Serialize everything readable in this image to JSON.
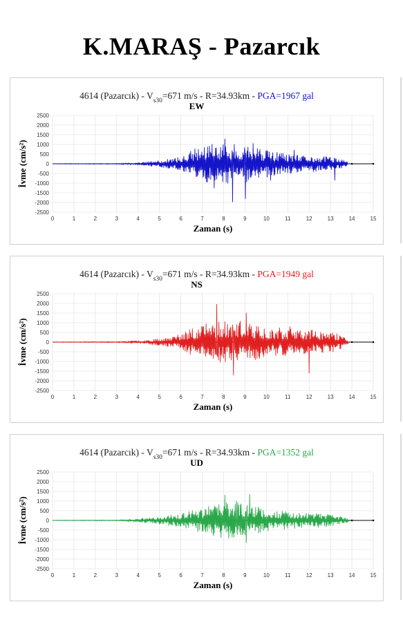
{
  "page_title": "K.MARAŞ - Pazarcık",
  "chart_data": [
    {
      "type": "line",
      "title_prefix": "4614 (Pazarcık) - V",
      "title_sub": "s30",
      "title_suffix": "=671 m/s - R=34.93km - ",
      "pga_label": "PGA=1967 gal",
      "component": "EW",
      "color": "#1414c8",
      "xlabel": "Zaman (s)",
      "ylabel": "İvme (cm/s²)",
      "xlim": [
        0,
        15
      ],
      "ylim": [
        -2500,
        2500
      ],
      "x_ticks": [
        0,
        1,
        2,
        3,
        4,
        5,
        6,
        7,
        8,
        9,
        10,
        11,
        12,
        13,
        14,
        15
      ],
      "y_ticks": [
        2500,
        2000,
        1500,
        1000,
        500,
        0,
        -500,
        -1000,
        -1500,
        -2000,
        -2500
      ],
      "grid": true,
      "envelope": [
        [
          0,
          15
        ],
        [
          3,
          25
        ],
        [
          4,
          70
        ],
        [
          5,
          160
        ],
        [
          6,
          350
        ],
        [
          6.5,
          700
        ],
        [
          7,
          950
        ],
        [
          7.5,
          1050
        ],
        [
          8,
          1050
        ],
        [
          8.5,
          1000
        ],
        [
          9,
          1000
        ],
        [
          9.5,
          850
        ],
        [
          10,
          700
        ],
        [
          11,
          500
        ],
        [
          12,
          400
        ],
        [
          13,
          380
        ],
        [
          13.6,
          200
        ],
        [
          14,
          20
        ],
        [
          15,
          20
        ]
      ],
      "peaks": [
        [
          8.42,
          -1967
        ],
        [
          8.05,
          1280
        ],
        [
          9.02,
          -1800
        ],
        [
          9.38,
          1050
        ],
        [
          7.55,
          -1250
        ],
        [
          10.2,
          -850
        ],
        [
          13.2,
          -850
        ],
        [
          11.3,
          700
        ]
      ],
      "seed": 11
    },
    {
      "type": "line",
      "title_prefix": "4614 (Pazarcık) - V",
      "title_sub": "s30",
      "title_suffix": "=671 m/s - R=34.93km - ",
      "pga_label": "PGA=1949 gal",
      "component": "NS",
      "color": "#e02020",
      "xlabel": "Zaman (s)",
      "ylabel": "İvme (cm/s²)",
      "xlim": [
        0,
        15
      ],
      "ylim": [
        -2500,
        2500
      ],
      "x_ticks": [
        0,
        1,
        2,
        3,
        4,
        5,
        6,
        7,
        8,
        9,
        10,
        11,
        12,
        13,
        14,
        15
      ],
      "y_ticks": [
        2500,
        2000,
        1500,
        1000,
        500,
        0,
        -500,
        -1000,
        -1500,
        -2000,
        -2500
      ],
      "grid": true,
      "envelope": [
        [
          0,
          15
        ],
        [
          3,
          30
        ],
        [
          4,
          80
        ],
        [
          5,
          180
        ],
        [
          6,
          400
        ],
        [
          6.5,
          750
        ],
        [
          7,
          950
        ],
        [
          7.5,
          1100
        ],
        [
          8,
          1150
        ],
        [
          8.5,
          1150
        ],
        [
          9,
          1050
        ],
        [
          9.5,
          900
        ],
        [
          10,
          800
        ],
        [
          11,
          700
        ],
        [
          12,
          650
        ],
        [
          13,
          550
        ],
        [
          13.6,
          300
        ],
        [
          14,
          20
        ],
        [
          15,
          20
        ]
      ],
      "peaks": [
        [
          7.68,
          1949
        ],
        [
          8.45,
          -1700
        ],
        [
          9.05,
          1500
        ],
        [
          12.0,
          -1600
        ],
        [
          11.1,
          800
        ]
      ],
      "seed": 23
    },
    {
      "type": "line",
      "title_prefix": "4614 (Pazarcık) - V",
      "title_sub": "s30",
      "title_suffix": "=671 m/s - R=34.93km - ",
      "pga_label": "PGA=1352 gal",
      "component": "UD",
      "color": "#2aa84a",
      "xlabel": "Zaman (s)",
      "ylabel": "İvme (cm/s²)",
      "xlim": [
        0,
        15
      ],
      "ylim": [
        -2500,
        2500
      ],
      "x_ticks": [
        0,
        1,
        2,
        3,
        4,
        5,
        6,
        7,
        8,
        9,
        10,
        11,
        12,
        13,
        14,
        15
      ],
      "y_ticks": [
        2500,
        2000,
        1500,
        1000,
        500,
        0,
        -500,
        -1000,
        -1500,
        -2000,
        -2500
      ],
      "grid": true,
      "envelope": [
        [
          0,
          15
        ],
        [
          3,
          25
        ],
        [
          4,
          90
        ],
        [
          5,
          200
        ],
        [
          6,
          350
        ],
        [
          7,
          650
        ],
        [
          7.5,
          800
        ],
        [
          8,
          950
        ],
        [
          8.5,
          950
        ],
        [
          9,
          900
        ],
        [
          9.5,
          800
        ],
        [
          10,
          600
        ],
        [
          11,
          450
        ],
        [
          12,
          380
        ],
        [
          13,
          320
        ],
        [
          13.6,
          180
        ],
        [
          14,
          20
        ],
        [
          15,
          20
        ]
      ],
      "peaks": [
        [
          9.22,
          1352
        ],
        [
          8.05,
          1300
        ],
        [
          9.05,
          -1150
        ],
        [
          8.6,
          1000
        ]
      ],
      "seed": 37
    }
  ]
}
